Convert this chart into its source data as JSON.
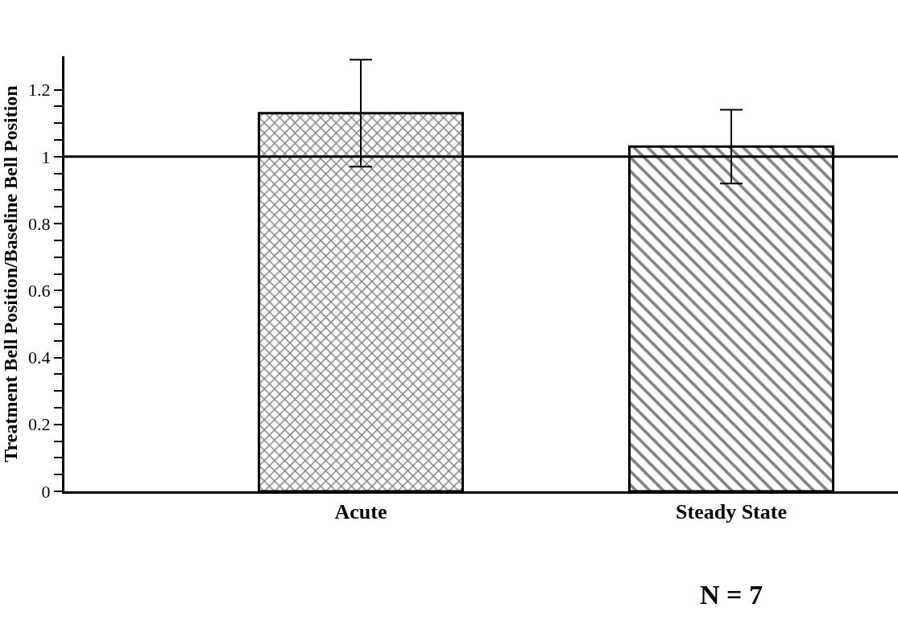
{
  "chart_data": {
    "type": "bar",
    "ylabel": "Treatment Bell Position/Baseline Bell Position",
    "categories": [
      "Acute",
      "Steady State"
    ],
    "values": [
      1.13,
      1.03
    ],
    "errors": [
      0.16,
      0.11
    ],
    "colors": [
      "#000000",
      "#000000"
    ],
    "ylim": [
      0,
      1.3
    ],
    "yticks": [
      0,
      {
        "value": 0.05,
        "label": null
      },
      {
        "value": 0.1,
        "label": null
      },
      {
        "value": 0.15,
        "label": null
      },
      0.2,
      {
        "value": 0.25,
        "label": null
      },
      {
        "value": 0.3,
        "label": null
      },
      {
        "value": 0.35,
        "label": null
      },
      0.4,
      {
        "value": 0.45,
        "label": null
      },
      {
        "value": 0.5,
        "label": null
      },
      {
        "value": 0.55,
        "label": null
      },
      0.6,
      {
        "value": 0.65,
        "label": null
      },
      {
        "value": 0.7,
        "label": null
      },
      {
        "value": 0.75,
        "label": null
      },
      0.8,
      {
        "value": 0.85,
        "label": null
      },
      {
        "value": 0.9,
        "label": null
      },
      {
        "value": 0.95,
        "label": null
      },
      1,
      {
        "value": 1.05,
        "label": null
      },
      {
        "value": 1.1,
        "label": null
      },
      {
        "value": 1.15,
        "label": null
      },
      1.2
    ],
    "ref_lines": [
      {
        "axis": "y",
        "value": 1,
        "color": "#000000"
      }
    ],
    "annotations": [
      "N = 7"
    ]
  }
}
